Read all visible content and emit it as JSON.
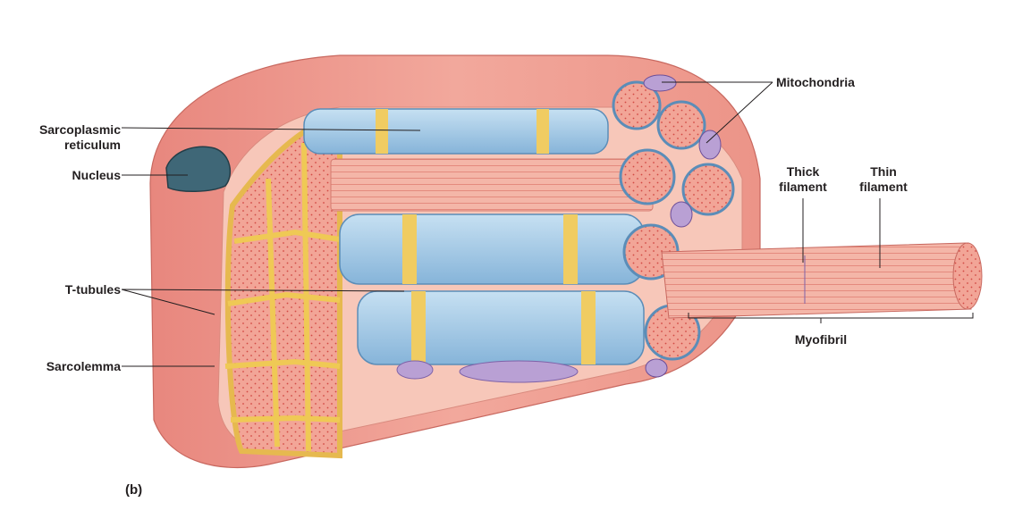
{
  "panel_label": "(b)",
  "labels": {
    "sarcoplasmic_reticulum": {
      "line1": "Sarcoplasmic",
      "line2": "reticulum"
    },
    "nucleus": "Nucleus",
    "t_tubules": "T-tubules",
    "sarcolemma": "Sarcolemma",
    "mitochondria": "Mitochondria",
    "thick_filament": {
      "line1": "Thick",
      "line2": "filament"
    },
    "thin_filament": {
      "line1": "Thin",
      "line2": "filament"
    },
    "myofibril": "Myofibril"
  },
  "colors": {
    "muscle_surface": "#e8928a",
    "muscle_highlight": "#f6c8bd",
    "t_tubule_yellow": "#f2cf6a",
    "reticulum_blue": "#9cc6e4",
    "myofibril_pink": "#ef9f92",
    "mitochondria_purple": "#b9a0d4",
    "nucleus_teal": "#3f6777"
  }
}
